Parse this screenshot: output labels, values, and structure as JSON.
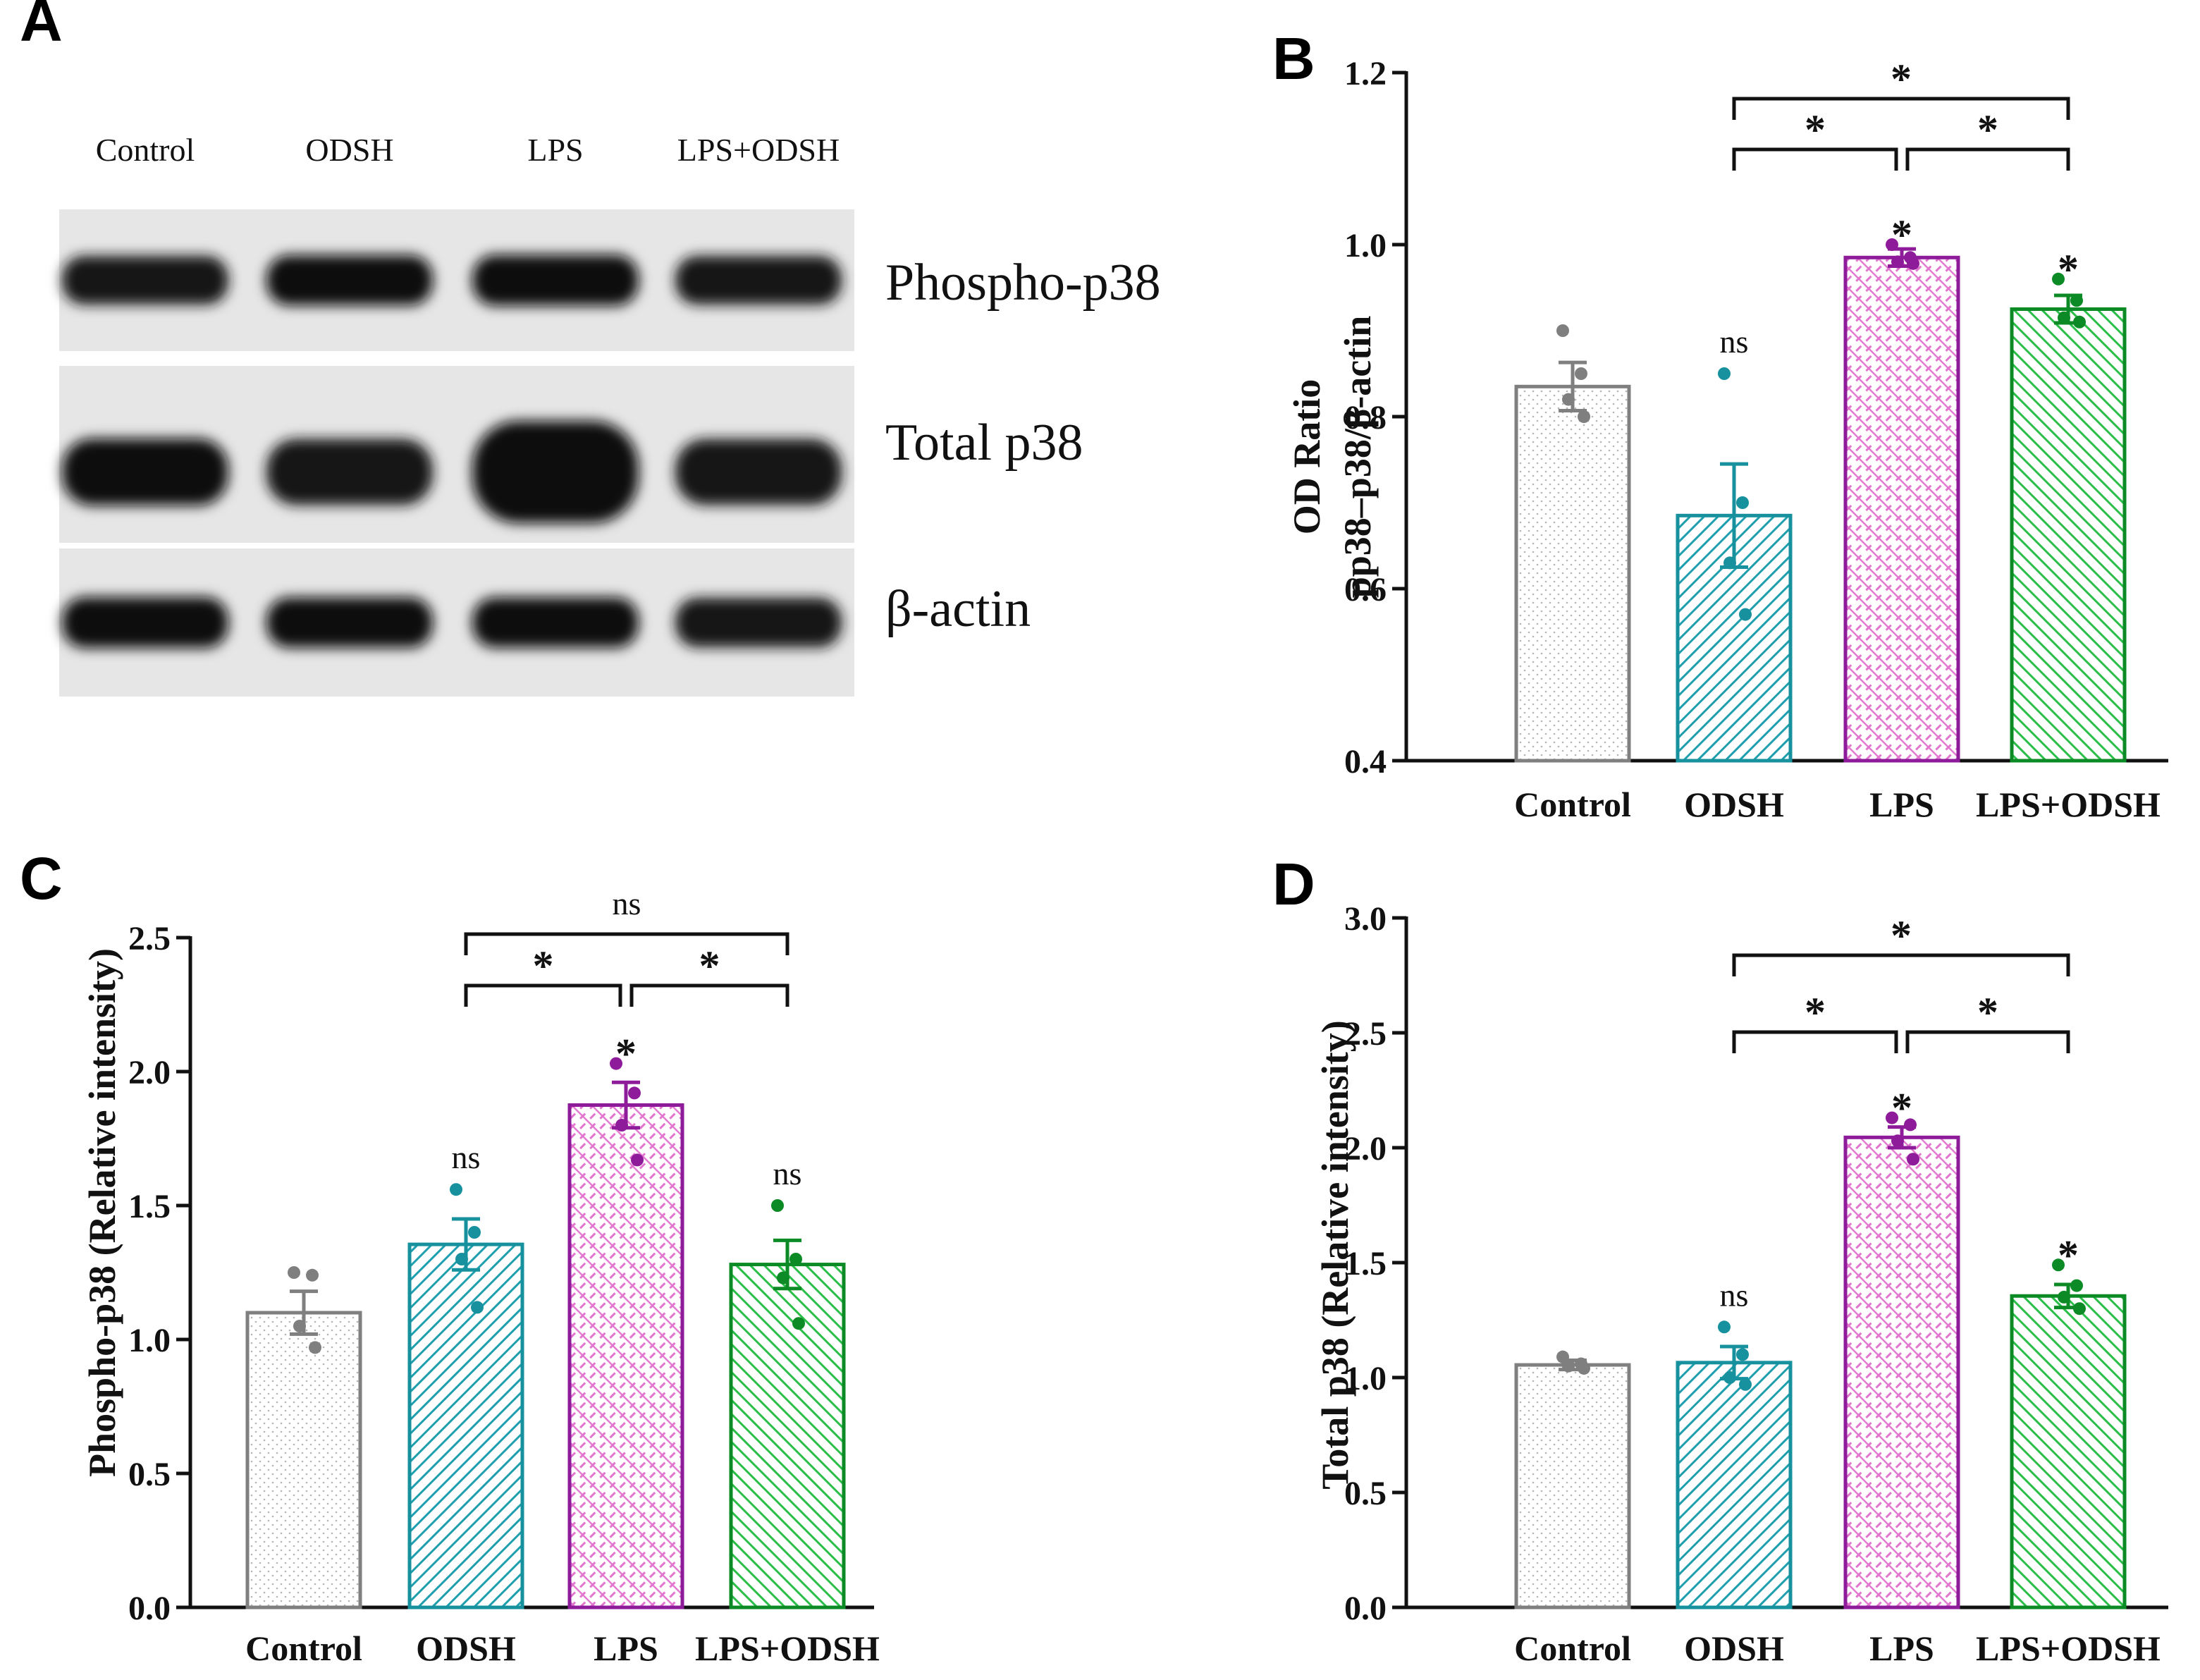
{
  "colors": {
    "Control": "#7f7f7f",
    "ODSH": "#17919e",
    "LPS": "#8e1b9a",
    "LPS+ODSH": "#0c8a25",
    "pattern_Control": "#b5b5b5",
    "pattern_ODSH": "#1f9fad",
    "pattern_LPS": "#e276cf",
    "pattern_LPS+ODSH": "#2bbf4a"
  },
  "blot": {
    "panel_letter": "A",
    "lanes": [
      "Control",
      "ODSH",
      "LPS",
      "LPS+ODSH"
    ],
    "rows": [
      {
        "label": "Phospho-p38",
        "intensity": [
          0.85,
          0.95,
          1.0,
          0.85
        ]
      },
      {
        "label": "Total p38",
        "intensity": [
          0.95,
          0.9,
          1.0,
          0.9
        ]
      },
      {
        "label": "β-actin",
        "intensity": [
          1.0,
          0.95,
          0.95,
          0.9
        ]
      }
    ]
  },
  "chart_data": [
    {
      "panel_letter": "B",
      "type": "bar",
      "title": "",
      "xlabel": "",
      "ylabel": "OD Ratio",
      "ylabel2": "pp38–p38/β-actin",
      "categories": [
        "Control",
        "ODSH",
        "LPS",
        "LPS+ODSH"
      ],
      "values": [
        0.835,
        0.685,
        0.985,
        0.925
      ],
      "errors": [
        0.028,
        0.06,
        0.01,
        0.016
      ],
      "points": [
        [
          0.9,
          0.85,
          0.82,
          0.8
        ],
        [
          0.85,
          0.7,
          0.63,
          0.57
        ],
        [
          1.0,
          0.985,
          0.98,
          0.978
        ],
        [
          0.96,
          0.935,
          0.915,
          0.91
        ]
      ],
      "ylim": [
        0.4,
        1.2
      ],
      "yticks": [
        0.4,
        0.6,
        0.8,
        1.0,
        1.2
      ],
      "tick_labels": [
        "0.4",
        "0.6",
        "0.8",
        "1.0",
        "1.2"
      ],
      "bar_labels": [
        "",
        "ns",
        "*",
        "*"
      ],
      "brackets": [
        {
          "from": 1,
          "to": 2,
          "label": "*",
          "level": 0
        },
        {
          "from": 2,
          "to": 3,
          "label": "*",
          "level": 0
        },
        {
          "from": 1,
          "to": 3,
          "label": "*",
          "level": 1
        }
      ]
    },
    {
      "panel_letter": "C",
      "type": "bar",
      "title": "",
      "xlabel": "",
      "ylabel": "Phospho-p38 (Relative intensity)",
      "ylabel2": "",
      "categories": [
        "Control",
        "ODSH",
        "LPS",
        "LPS+ODSH"
      ],
      "values": [
        1.1,
        1.355,
        1.875,
        1.28
      ],
      "errors": [
        0.08,
        0.095,
        0.085,
        0.09
      ],
      "points": [
        [
          1.25,
          1.24,
          1.05,
          0.97
        ],
        [
          1.56,
          1.4,
          1.3,
          1.12
        ],
        [
          2.03,
          1.92,
          1.8,
          1.67
        ],
        [
          1.5,
          1.3,
          1.23,
          1.06
        ]
      ],
      "ylim": [
        0.0,
        2.5
      ],
      "yticks": [
        0.0,
        0.5,
        1.0,
        1.5,
        2.0,
        2.5
      ],
      "tick_labels": [
        "0.0",
        "0.5",
        "1.0",
        "1.5",
        "2.0",
        "2.5"
      ],
      "bar_labels": [
        "",
        "ns",
        "*",
        "ns"
      ],
      "brackets": [
        {
          "from": 1,
          "to": 2,
          "label": "*",
          "level": 0
        },
        {
          "from": 2,
          "to": 3,
          "label": "*",
          "level": 0
        },
        {
          "from": 1,
          "to": 3,
          "label": "ns",
          "level": 1
        }
      ]
    },
    {
      "panel_letter": "D",
      "type": "bar",
      "title": "",
      "xlabel": "",
      "ylabel": "Total p38 (Relative intensity)",
      "ylabel2": "",
      "categories": [
        "Control",
        "ODSH",
        "LPS",
        "LPS+ODSH"
      ],
      "values": [
        1.055,
        1.065,
        2.045,
        1.355
      ],
      "errors": [
        0.02,
        0.07,
        0.045,
        0.05
      ],
      "points": [
        [
          1.09,
          1.06,
          1.05,
          1.04
        ],
        [
          1.22,
          1.1,
          1.0,
          0.97
        ],
        [
          2.13,
          2.1,
          2.03,
          1.95
        ],
        [
          1.49,
          1.4,
          1.35,
          1.3
        ]
      ],
      "ylim": [
        0.0,
        3.0
      ],
      "yticks": [
        0.0,
        0.5,
        1.0,
        1.5,
        2.0,
        2.5,
        3.0
      ],
      "tick_labels": [
        "0.0",
        "0.5",
        "1.0",
        "1.5",
        "2.0",
        "2.5",
        "3.0"
      ],
      "bar_labels": [
        "",
        "ns",
        "*",
        "*"
      ],
      "brackets": [
        {
          "from": 1,
          "to": 2,
          "label": "*",
          "level": 0
        },
        {
          "from": 2,
          "to": 3,
          "label": "*",
          "level": 0
        },
        {
          "from": 1,
          "to": 3,
          "label": "*",
          "level": 1
        }
      ]
    }
  ]
}
